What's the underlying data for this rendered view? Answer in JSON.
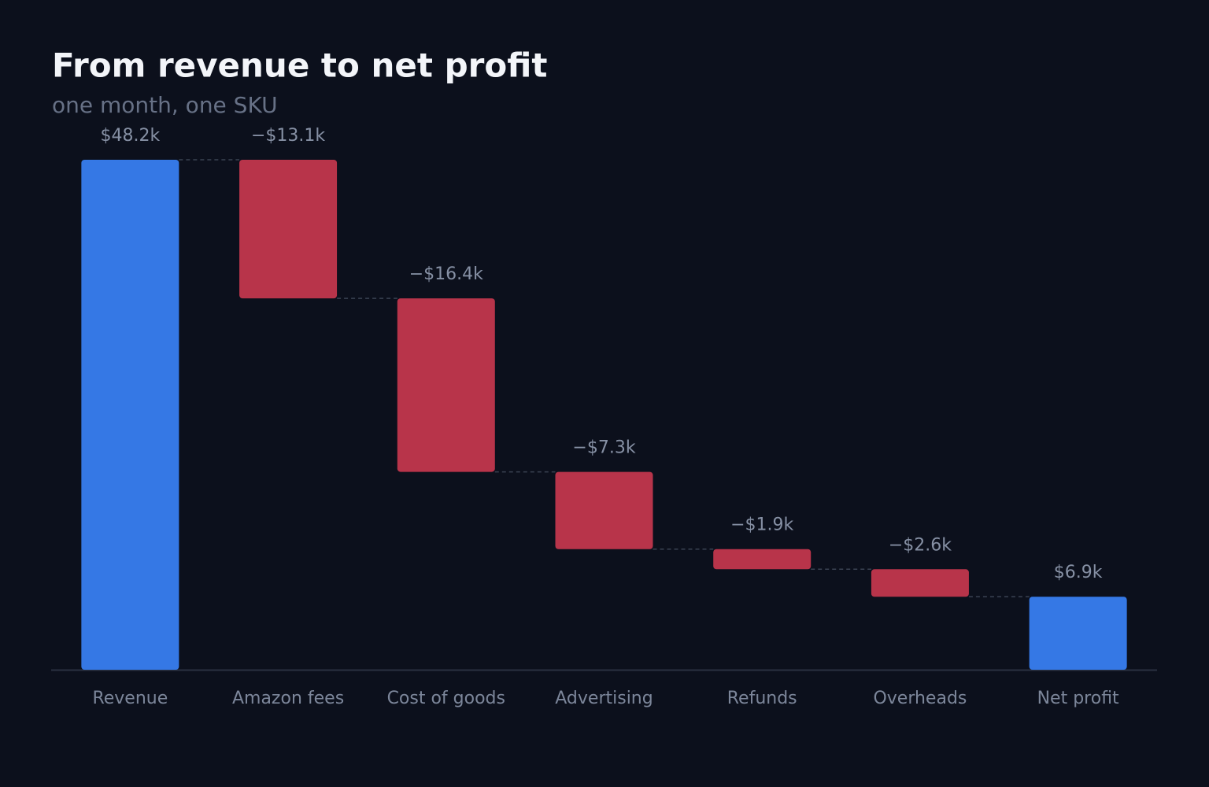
{
  "chart_data": {
    "type": "waterfall",
    "title": "From revenue to net profit",
    "subtitle": "one month, one SKU",
    "categories": [
      "Revenue",
      "Amazon fees",
      "Cost of goods",
      "Advertising",
      "Refunds",
      "Overheads",
      "Net profit"
    ],
    "values": [
      48.2,
      -13.1,
      -16.4,
      -7.3,
      -1.9,
      -2.6,
      6.9
    ],
    "value_labels": [
      "$48.2k",
      "−$13.1k",
      "−$16.4k",
      "−$7.3k",
      "−$1.9k",
      "−$2.6k",
      "$6.9k"
    ],
    "measures": [
      "total",
      "relative",
      "relative",
      "relative",
      "relative",
      "relative",
      "total"
    ],
    "total_color": "#3578e5",
    "decrease_color": "#b8344a",
    "increase_color": "#2fa36b"
  }
}
